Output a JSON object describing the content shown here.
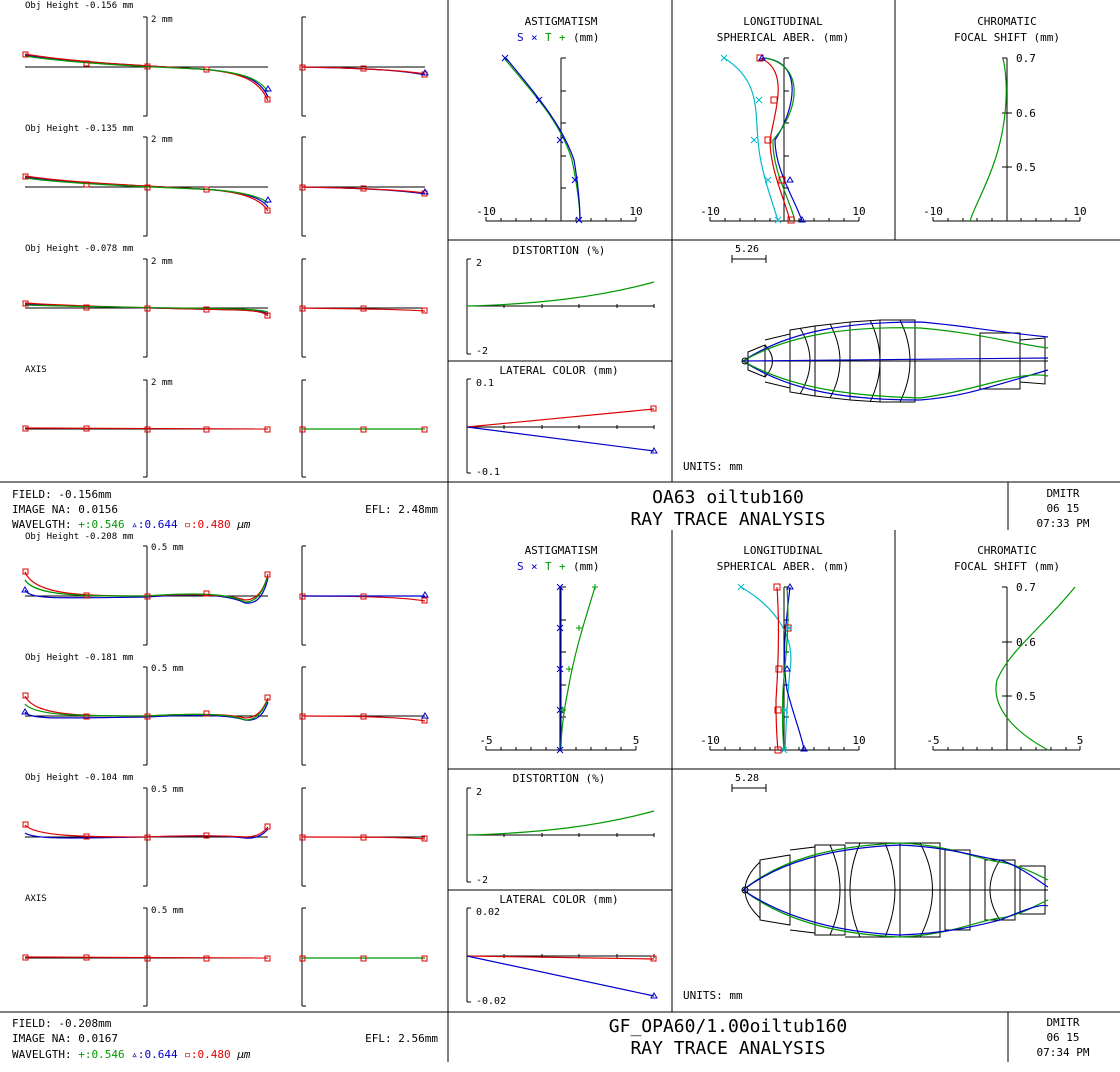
{
  "colors": {
    "green": "#009900",
    "blue": "#0000cc",
    "red": "#dd0000",
    "cyan": "#00bbcc",
    "black": "#000000"
  },
  "icons": {
    "plus": "plus-marker",
    "cross": "x-marker",
    "triangle": "triangle-marker",
    "square": "square-marker"
  },
  "reports": [
    {
      "fans": {
        "rows": [
          {
            "label": "Obj Height -0.156 mm",
            "scale": "2 mm"
          },
          {
            "label": "Obj Height -0.135 mm",
            "scale": "2 mm"
          },
          {
            "label": "Obj Height -0.078 mm",
            "scale": "2 mm"
          },
          {
            "label": "AXIS",
            "scale": "2 mm"
          }
        ]
      },
      "astig": {
        "t1": "ASTIGMATISM",
        "s": "S",
        "x": "×",
        "tt": "T",
        "p": "+",
        "unit": "(mm)",
        "min": "-10",
        "max": "10"
      },
      "long": {
        "t1": "LONGITUDINAL",
        "t2": "SPHERICAL ABER. (mm)",
        "min": "-10",
        "max": "10"
      },
      "chrom": {
        "t1": "CHROMATIC",
        "t2": "FOCAL SHIFT (mm)",
        "min": "-10",
        "max": "10",
        "ticks": [
          "0.7",
          "0.6",
          "0.5"
        ]
      },
      "dist": {
        "title": "DISTORTION (%)",
        "top": "2",
        "bot": "-2"
      },
      "lat": {
        "title": "LATERAL COLOR (mm)",
        "top": "0.1",
        "bot": "-0.1"
      },
      "layout": {
        "scale": "5.26",
        "units": "UNITS: mm"
      },
      "footer": {
        "field": "FIELD: -0.156mm",
        "na": "IMAGE NA: 0.0156",
        "efl": "EFL: 2.48mm",
        "wl_label": "WAVELGTH:",
        "wl1": "+:0.546",
        "wl2": "▵:0.644",
        "wl3": "▫:0.480",
        "wl_unit": "µm",
        "title": "OA63 oiltub160",
        "subtitle": "RAY TRACE ANALYSIS",
        "author": "DMITR",
        "date": "06  15",
        "time": "07:33 PM"
      }
    },
    {
      "fans": {
        "rows": [
          {
            "label": "Obj Height -0.208 mm",
            "scale": "0.5 mm"
          },
          {
            "label": "Obj Height -0.181 mm",
            "scale": "0.5 mm"
          },
          {
            "label": "Obj Height -0.104 mm",
            "scale": "0.5 mm"
          },
          {
            "label": "AXIS",
            "scale": "0.5 mm"
          }
        ]
      },
      "astig": {
        "t1": "ASTIGMATISM",
        "s": "S",
        "x": "×",
        "tt": "T",
        "p": "+",
        "unit": "(mm)",
        "min": "-5",
        "max": "5"
      },
      "long": {
        "t1": "LONGITUDINAL",
        "t2": "SPHERICAL ABER. (mm)",
        "min": "-10",
        "max": "10"
      },
      "chrom": {
        "t1": "CHROMATIC",
        "t2": "FOCAL SHIFT (mm)",
        "min": "-5",
        "max": "5",
        "ticks": [
          "0.7",
          "0.6",
          "0.5"
        ]
      },
      "dist": {
        "title": "DISTORTION (%)",
        "top": "2",
        "bot": "-2"
      },
      "lat": {
        "title": "LATERAL COLOR (mm)",
        "top": "0.02",
        "bot": "-0.02"
      },
      "layout": {
        "scale": "5.28",
        "units": "UNITS: mm"
      },
      "footer": {
        "field": "FIELD: -0.208mm",
        "na": "IMAGE NA: 0.0167",
        "efl": "EFL: 2.56mm",
        "wl_label": "WAVELGTH:",
        "wl1": "+:0.546",
        "wl2": "▵:0.644",
        "wl3": "▫:0.480",
        "wl_unit": "µm",
        "title": "GF_OPA60/1.00oiltub160",
        "subtitle": "RAY TRACE ANALYSIS",
        "author": "DMITR",
        "date": "06  15",
        "time": "07:34 PM"
      }
    }
  ]
}
